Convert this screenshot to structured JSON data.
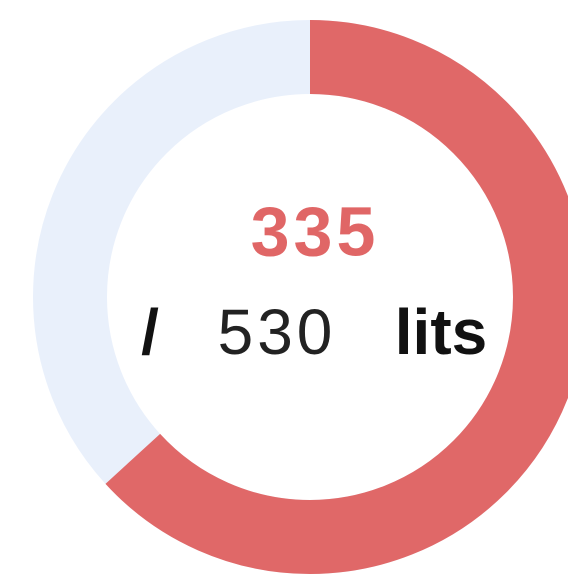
{
  "gauge": {
    "value": 335,
    "max": 530,
    "separator": "/",
    "unit": "lits"
  }
}
